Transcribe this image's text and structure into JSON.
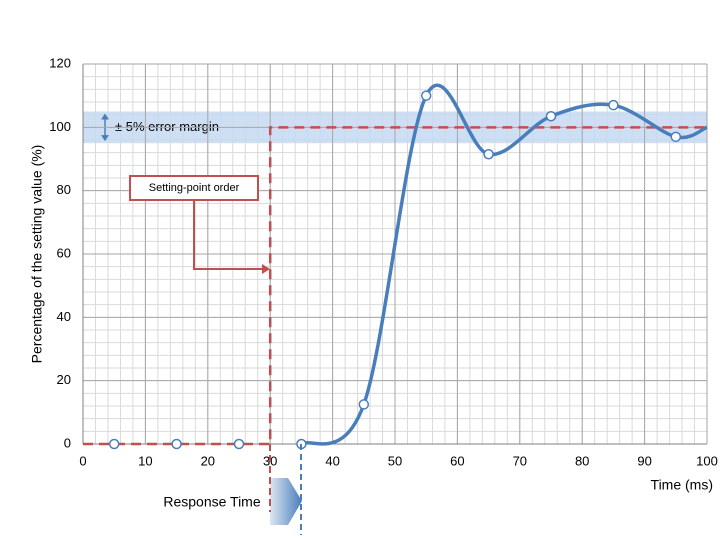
{
  "chart_data": {
    "type": "line",
    "x_label": "Time (ms)",
    "y_label": "Percentage of the setting value (%)",
    "xlim": [
      0,
      100
    ],
    "xticks": [
      0,
      10,
      20,
      30,
      40,
      50,
      60,
      70,
      80,
      90,
      100
    ],
    "ylim": [
      0,
      120
    ],
    "yticks": [
      0,
      20,
      40,
      60,
      80,
      100,
      120
    ],
    "grid": true,
    "x_minor_step": 2,
    "y_minor_step": 4,
    "band": {
      "from": 95,
      "to": 105,
      "label": "± 5% error margin",
      "color": "#c6d9f1"
    },
    "series": [
      {
        "type": "line",
        "color": "#4a7ebb",
        "x": [
          35,
          45,
          55,
          65,
          75,
          85,
          95,
          100
        ],
        "values": [
          0,
          12.5,
          110,
          91.5,
          103.5,
          107,
          97,
          100
        ]
      },
      {
        "type": "scatter",
        "color": "#4a7ebb",
        "x": [
          5,
          15,
          25,
          35,
          45,
          55,
          65,
          75,
          85,
          95
        ],
        "values": [
          0,
          0,
          0,
          0,
          12.5,
          110,
          91.5,
          103.5,
          107,
          97
        ]
      },
      {
        "type": "step",
        "color": "#c0504d",
        "x": [
          0,
          30,
          30,
          100
        ],
        "values": [
          0,
          0,
          100,
          100
        ]
      }
    ],
    "annotations": [
      "Setting-point order",
      "Response Time"
    ]
  }
}
